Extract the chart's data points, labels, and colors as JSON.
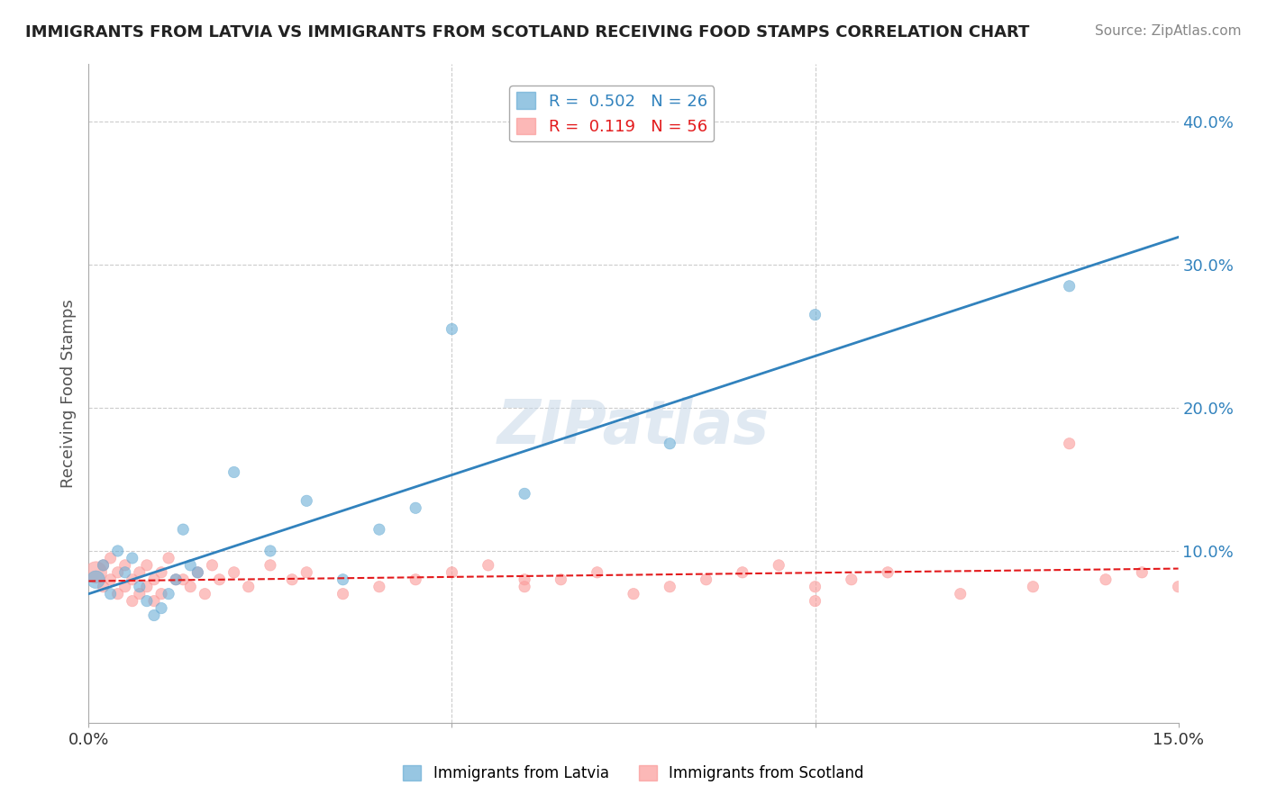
{
  "title": "IMMIGRANTS FROM LATVIA VS IMMIGRANTS FROM SCOTLAND RECEIVING FOOD STAMPS CORRELATION CHART",
  "source": "Source: ZipAtlas.com",
  "ylabel": "Receiving Food Stamps",
  "xlim": [
    0.0,
    0.15
  ],
  "ylim": [
    -0.02,
    0.44
  ],
  "yticks": [
    0.0,
    0.1,
    0.2,
    0.3,
    0.4
  ],
  "ytick_labels": [
    "",
    "10.0%",
    "20.0%",
    "30.0%",
    "40.0%"
  ],
  "xticks": [
    0.0,
    0.05,
    0.1,
    0.15
  ],
  "xtick_labels": [
    "0.0%",
    "",
    "",
    "15.0%"
  ],
  "legend_r1": "R =  0.502",
  "legend_n1": "N = 26",
  "legend_r2": "R =  0.119",
  "legend_n2": "N = 56",
  "color_latvia": "#6baed6",
  "color_scotland": "#fb9a99",
  "color_line_latvia": "#3182bd",
  "color_line_scotland": "#e31a1c",
  "watermark": "ZIPatlas",
  "latvia_x": [
    0.001,
    0.002,
    0.003,
    0.004,
    0.005,
    0.006,
    0.007,
    0.008,
    0.009,
    0.01,
    0.011,
    0.012,
    0.013,
    0.014,
    0.015,
    0.02,
    0.025,
    0.03,
    0.035,
    0.04,
    0.045,
    0.05,
    0.06,
    0.08,
    0.1,
    0.135
  ],
  "latvia_y": [
    0.08,
    0.09,
    0.07,
    0.1,
    0.085,
    0.095,
    0.075,
    0.065,
    0.055,
    0.06,
    0.07,
    0.08,
    0.115,
    0.09,
    0.085,
    0.155,
    0.1,
    0.135,
    0.08,
    0.115,
    0.13,
    0.255,
    0.14,
    0.175,
    0.265,
    0.285
  ],
  "scotland_x": [
    0.001,
    0.002,
    0.002,
    0.003,
    0.003,
    0.004,
    0.004,
    0.005,
    0.005,
    0.006,
    0.006,
    0.007,
    0.007,
    0.008,
    0.008,
    0.009,
    0.009,
    0.01,
    0.01,
    0.011,
    0.012,
    0.013,
    0.014,
    0.015,
    0.016,
    0.017,
    0.018,
    0.02,
    0.022,
    0.025,
    0.028,
    0.03,
    0.035,
    0.04,
    0.045,
    0.05,
    0.055,
    0.06,
    0.065,
    0.07,
    0.075,
    0.08,
    0.085,
    0.09,
    0.095,
    0.1,
    0.105,
    0.11,
    0.12,
    0.13,
    0.135,
    0.14,
    0.145,
    0.15,
    0.1,
    0.06
  ],
  "scotland_y": [
    0.085,
    0.09,
    0.075,
    0.095,
    0.08,
    0.085,
    0.07,
    0.09,
    0.075,
    0.065,
    0.08,
    0.07,
    0.085,
    0.075,
    0.09,
    0.065,
    0.08,
    0.07,
    0.085,
    0.095,
    0.08,
    0.08,
    0.075,
    0.085,
    0.07,
    0.09,
    0.08,
    0.085,
    0.075,
    0.09,
    0.08,
    0.085,
    0.07,
    0.075,
    0.08,
    0.085,
    0.09,
    0.075,
    0.08,
    0.085,
    0.07,
    0.075,
    0.08,
    0.085,
    0.09,
    0.075,
    0.08,
    0.085,
    0.07,
    0.075,
    0.175,
    0.08,
    0.085,
    0.075,
    0.065,
    0.08
  ],
  "latvia_size": [
    200,
    80,
    80,
    80,
    80,
    80,
    80,
    80,
    80,
    80,
    80,
    80,
    80,
    80,
    80,
    80,
    80,
    80,
    80,
    80,
    80,
    80,
    80,
    80,
    80,
    80
  ],
  "scotland_size": [
    300,
    80,
    80,
    80,
    80,
    80,
    80,
    80,
    80,
    80,
    80,
    80,
    80,
    80,
    80,
    80,
    80,
    80,
    80,
    80,
    80,
    80,
    80,
    80,
    80,
    80,
    80,
    80,
    80,
    80,
    80,
    80,
    80,
    80,
    80,
    80,
    80,
    80,
    80,
    80,
    80,
    80,
    80,
    80,
    80,
    80,
    80,
    80,
    80,
    80,
    80,
    80,
    80,
    80,
    80,
    80
  ]
}
